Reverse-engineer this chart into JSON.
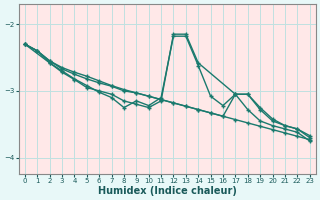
{
  "xlabel": "Humidex (Indice chaleur)",
  "bg_color": "#e8f8f8",
  "plot_bg_color": "#ffe8e8",
  "grid_color": "#c0e0e0",
  "line_color": "#1a7a6e",
  "xlim": [
    -0.5,
    23.5
  ],
  "ylim": [
    -4.25,
    -1.7
  ],
  "yticks": [
    -4,
    -3,
    -2
  ],
  "xticks": [
    0,
    1,
    2,
    3,
    4,
    5,
    6,
    7,
    8,
    9,
    10,
    11,
    12,
    13,
    14,
    15,
    16,
    17,
    18,
    19,
    20,
    21,
    22,
    23
  ],
  "line1_x": [
    0,
    1,
    2,
    3,
    4,
    5,
    6,
    7,
    8,
    9,
    10,
    11,
    12,
    13,
    14,
    15,
    16,
    17,
    18,
    19,
    20,
    21,
    22,
    23
  ],
  "line1_y": [
    -2.3,
    -2.4,
    -2.55,
    -2.65,
    -2.72,
    -2.78,
    -2.85,
    -2.92,
    -2.98,
    -3.03,
    -3.08,
    -3.13,
    -3.18,
    -3.23,
    -3.28,
    -3.33,
    -3.38,
    -3.43,
    -3.48,
    -3.53,
    -3.58,
    -3.63,
    -3.68,
    -3.73
  ],
  "line2_x": [
    0,
    1,
    2,
    3,
    4,
    5,
    6,
    7,
    8,
    9,
    10,
    11,
    12,
    13,
    14,
    15,
    16,
    17,
    18,
    19,
    20,
    21,
    22,
    23
  ],
  "line2_y": [
    -2.3,
    -2.4,
    -2.55,
    -2.67,
    -2.75,
    -2.82,
    -2.88,
    -2.93,
    -3.0,
    -3.03,
    -3.08,
    -3.13,
    -3.18,
    -3.23,
    -3.28,
    -3.33,
    -3.38,
    -3.05,
    -3.05,
    -3.25,
    -3.42,
    -3.52,
    -3.57,
    -3.67
  ],
  "line3_x": [
    0,
    1,
    2,
    3,
    4,
    5,
    6,
    7,
    8,
    9,
    10,
    11,
    12,
    13,
    14,
    15,
    16,
    17,
    18,
    19,
    20,
    21,
    22,
    23
  ],
  "line3_y": [
    -2.3,
    -2.4,
    -2.58,
    -2.7,
    -2.82,
    -2.92,
    -3.02,
    -3.1,
    -3.25,
    -3.15,
    -3.22,
    -3.1,
    -2.18,
    -2.18,
    -2.62,
    -3.08,
    -3.22,
    -3.05,
    -3.05,
    -3.28,
    -3.45,
    -3.52,
    -3.57,
    -3.7
  ],
  "line4_x": [
    0,
    2,
    3,
    4,
    5,
    6,
    7,
    8,
    9,
    10,
    11,
    12,
    13,
    14,
    17,
    18,
    19,
    20,
    21,
    22,
    23
  ],
  "line4_y": [
    -2.3,
    -2.58,
    -2.72,
    -2.83,
    -2.95,
    -3.0,
    -3.05,
    -3.15,
    -3.2,
    -3.25,
    -3.15,
    -2.15,
    -2.15,
    -2.58,
    -3.05,
    -3.28,
    -3.45,
    -3.52,
    -3.57,
    -3.62,
    -3.75
  ],
  "marker_size": 2.5,
  "line_width": 1.0
}
